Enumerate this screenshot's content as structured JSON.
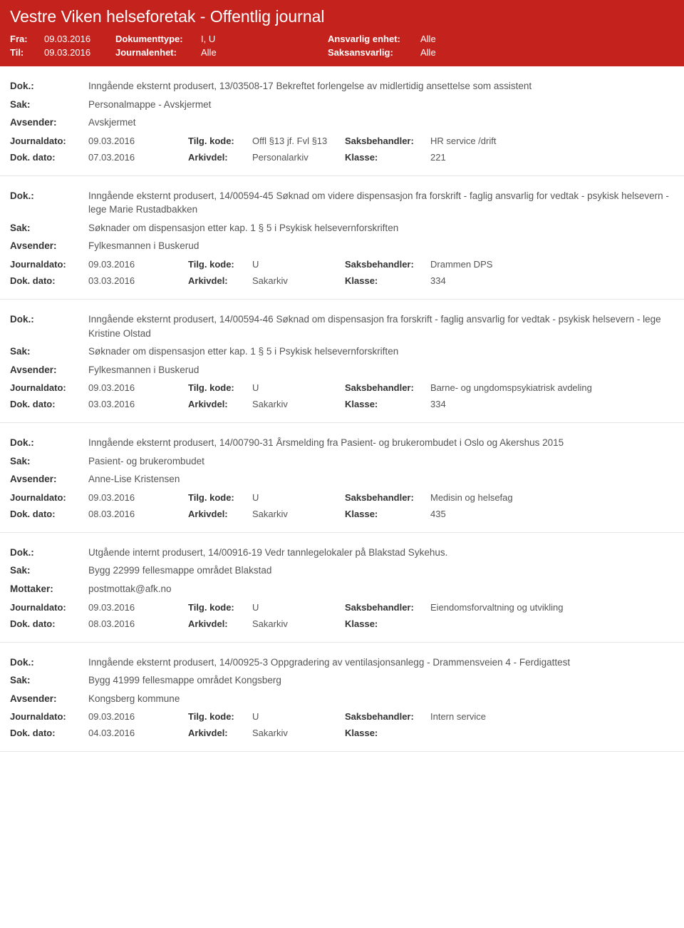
{
  "header": {
    "title": "Vestre Viken helseforetak - Offentlig journal",
    "fra_label": "Fra:",
    "fra_value": "09.03.2016",
    "til_label": "Til:",
    "til_value": "09.03.2016",
    "dokumenttype_label": "Dokumenttype:",
    "dokumenttype_value": "I, U",
    "journalenhet_label": "Journalenhet:",
    "journalenhet_value": "Alle",
    "ansvarlig_label": "Ansvarlig enhet:",
    "ansvarlig_value": "Alle",
    "saksansvarlig_label": "Saksansvarlig:",
    "saksansvarlig_value": "Alle"
  },
  "labels": {
    "dok": "Dok.:",
    "sak": "Sak:",
    "avsender": "Avsender:",
    "mottaker": "Mottaker:",
    "journaldato": "Journaldato:",
    "dokdato": "Dok. dato:",
    "tilgkode": "Tilg. kode:",
    "arkivdel": "Arkivdel:",
    "saksbehandler": "Saksbehandler:",
    "klasse": "Klasse:"
  },
  "entries": [
    {
      "dok": "Inngående eksternt produsert, 13/03508-17 Bekreftet forlengelse av midlertidig ansettelse som assistent",
      "sak": "Personalmappe - Avskjermet",
      "party_label": "Avsender:",
      "party_value": "Avskjermet",
      "journaldato": "09.03.2016",
      "tilgkode": "Offl §13 jf. Fvl §13",
      "saksbehandler": "HR service /drift",
      "dokdato": "07.03.2016",
      "arkivdel": "Personalarkiv",
      "klasse": "221"
    },
    {
      "dok": "Inngående eksternt produsert, 14/00594-45 Søknad om videre dispensasjon fra forskrift - faglig ansvarlig for vedtak - psykisk helsevern - lege Marie Rustadbakken",
      "sak": "Søknader om dispensasjon etter kap. 1 § 5 i Psykisk helsevernforskriften",
      "party_label": "Avsender:",
      "party_value": "Fylkesmannen i Buskerud",
      "journaldato": "09.03.2016",
      "tilgkode": "U",
      "saksbehandler": "Drammen DPS",
      "dokdato": "03.03.2016",
      "arkivdel": "Sakarkiv",
      "klasse": "334"
    },
    {
      "dok": "Inngående eksternt produsert, 14/00594-46 Søknad om dispensasjon fra forskrift - faglig ansvarlig for vedtak - psykisk helsevern - lege Kristine Olstad",
      "sak": "Søknader om dispensasjon etter kap. 1 § 5 i Psykisk helsevernforskriften",
      "party_label": "Avsender:",
      "party_value": "Fylkesmannen i Buskerud",
      "journaldato": "09.03.2016",
      "tilgkode": "U",
      "saksbehandler": "Barne- og ungdomspsykiatrisk avdeling",
      "dokdato": "03.03.2016",
      "arkivdel": "Sakarkiv",
      "klasse": "334"
    },
    {
      "dok": "Inngående eksternt produsert, 14/00790-31 Årsmelding fra Pasient- og brukerombudet i Oslo og Akershus 2015",
      "sak": "Pasient- og brukerombudet",
      "party_label": "Avsender:",
      "party_value": "Anne-Lise Kristensen",
      "journaldato": "09.03.2016",
      "tilgkode": "U",
      "saksbehandler": "Medisin og helsefag",
      "dokdato": "08.03.2016",
      "arkivdel": "Sakarkiv",
      "klasse": "435"
    },
    {
      "dok": "Utgående internt produsert, 14/00916-19 Vedr tannlegelokaler på Blakstad Sykehus.",
      "sak": "Bygg 22999 fellesmappe området Blakstad",
      "party_label": "Mottaker:",
      "party_value": "postmottak@afk.no",
      "journaldato": "09.03.2016",
      "tilgkode": "U",
      "saksbehandler": "Eiendomsforvaltning og utvikling",
      "dokdato": "08.03.2016",
      "arkivdel": "Sakarkiv",
      "klasse": ""
    },
    {
      "dok": "Inngående eksternt produsert, 14/00925-3 Oppgradering av ventilasjonsanlegg - Drammensveien 4 - Ferdigattest",
      "sak": "Bygg 41999 fellesmappe området Kongsberg",
      "party_label": "Avsender:",
      "party_value": "Kongsberg kommune",
      "journaldato": "09.03.2016",
      "tilgkode": "U",
      "saksbehandler": "Intern service",
      "dokdato": "04.03.2016",
      "arkivdel": "Sakarkiv",
      "klasse": ""
    }
  ]
}
